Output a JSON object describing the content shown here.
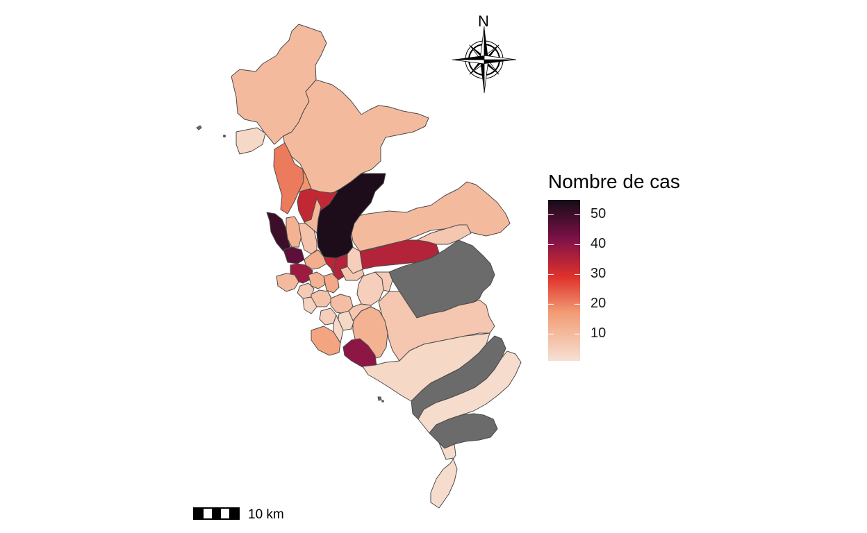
{
  "map": {
    "compass_label": "N",
    "scale_label": "10 km",
    "legend": {
      "title": "Nombre de cas",
      "range": [
        1,
        55
      ],
      "ticks": [
        "10",
        "20",
        "30",
        "40",
        "50"
      ],
      "colors": [
        "#f6e0d3",
        "#f29c74",
        "#e0322c",
        "#7d1148",
        "#150c16"
      ],
      "no_data_color": "#6b6b6b"
    }
  },
  "chart_data": {
    "type": "choropleth",
    "title": "",
    "legend_title": "Nombre de cas",
    "legend_ticks": [
      10,
      20,
      30,
      40,
      50
    ],
    "value_range": [
      1,
      55
    ],
    "legend_placement": "right",
    "districts": [
      {
        "value": 10
      },
      {
        "value": 10
      },
      {
        "value": 10
      },
      {
        "value": 3
      },
      {
        "value": 21
      },
      {
        "value": 54
      },
      {
        "value": 33
      },
      {
        "value": 50
      },
      {
        "value": 46
      },
      {
        "value": 12
      },
      {
        "value": 8
      },
      {
        "value": 35
      },
      {
        "value": 7
      },
      {
        "value": null
      },
      {
        "value": 5
      },
      {
        "value": 7
      },
      {
        "value": 12
      },
      {
        "value": 40
      },
      {
        "value": 13
      },
      {
        "value": 38
      },
      {
        "value": 10
      },
      {
        "value": 6
      },
      {
        "value": 12
      },
      {
        "value": 14
      },
      {
        "value": 8
      },
      {
        "value": 9
      },
      {
        "value": 15
      },
      {
        "value": 5
      },
      {
        "value": 3
      },
      {
        "value": 7
      },
      {
        "value": 3
      },
      {
        "value": null
      },
      {
        "value": 2
      },
      {
        "value": null
      },
      {
        "value": 2
      },
      {
        "value": 11
      },
      {
        "value": 18
      },
      {
        "value": 34
      },
      {
        "value": 5
      },
      {
        "value": 6
      },
      {
        "value": 4
      },
      {
        "value": 7
      },
      {
        "value": 3
      }
    ]
  }
}
